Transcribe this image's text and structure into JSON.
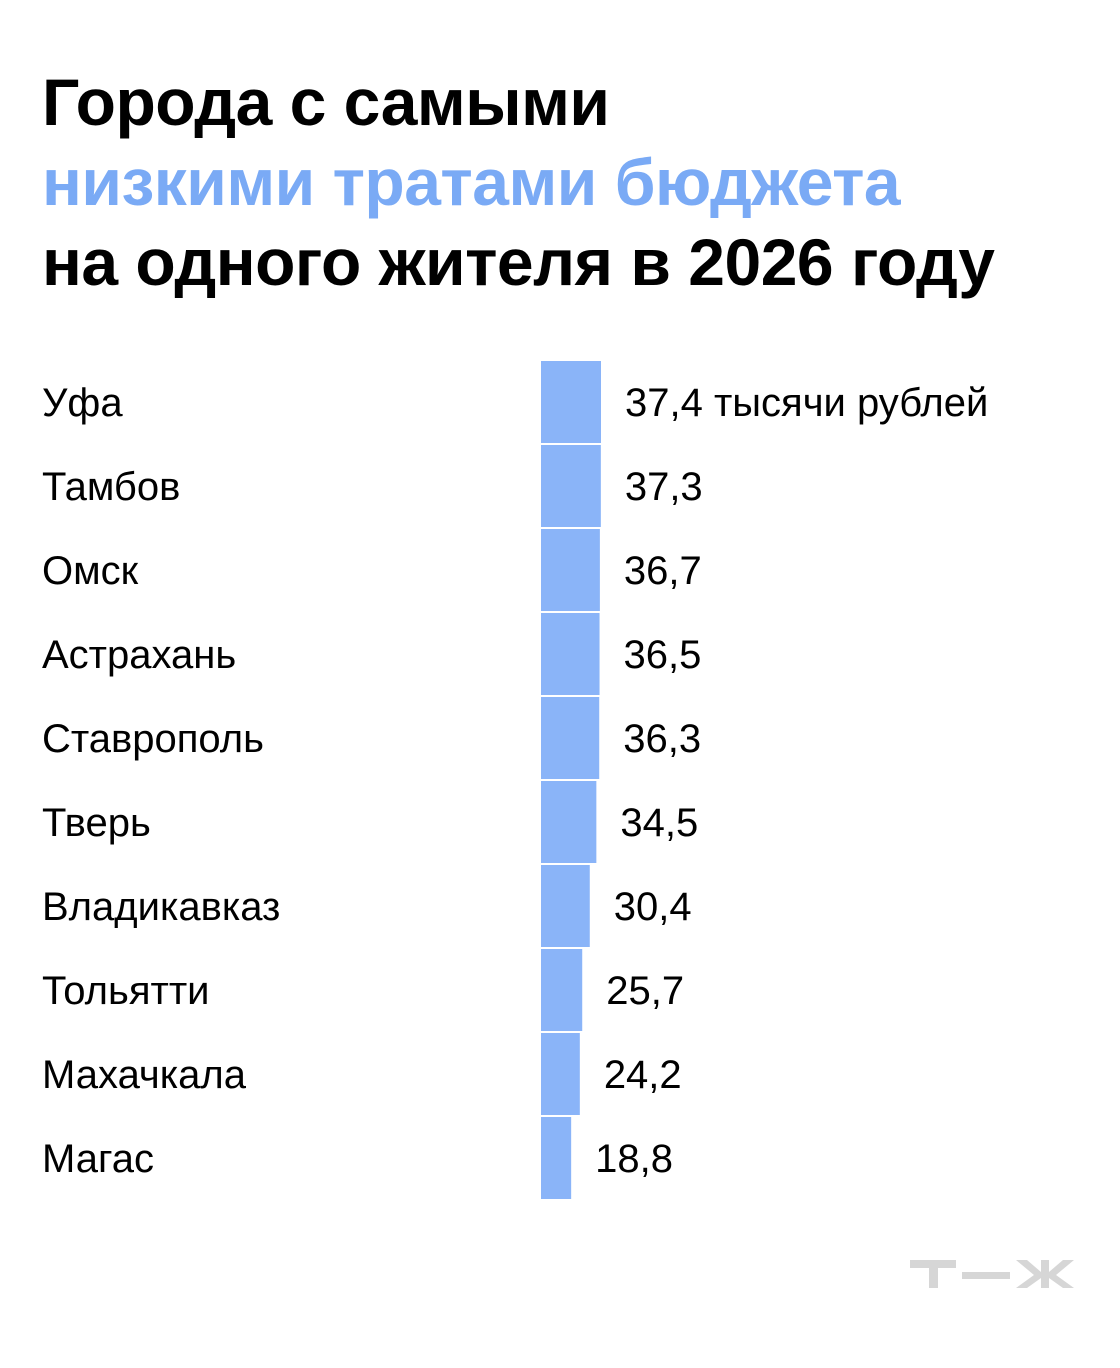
{
  "title": {
    "line1": "Города с самыми",
    "line2": "низкими тратами бюджета",
    "line3": "на одного жителя в 2026 году"
  },
  "colors": {
    "bar": "#8ab4f8",
    "accent": "#7aaaf5",
    "logo": "#d6d6d6"
  },
  "logo_text": "т—ж",
  "chart_data": {
    "type": "bar",
    "orientation": "horizontal",
    "categories": [
      "Уфа",
      "Тамбов",
      "Омск",
      "Астрахань",
      "Ставрополь",
      "Тверь",
      "Владикавказ",
      "Тольятти",
      "Махачкала",
      "Магас"
    ],
    "values": [
      37.4,
      37.3,
      36.7,
      36.5,
      36.3,
      34.5,
      30.4,
      25.7,
      24.2,
      18.8
    ],
    "value_labels": [
      "37,4 тысячи рублей",
      "37,3",
      "36,7",
      "36,5",
      "36,3",
      "34,5",
      "30,4",
      "25,7",
      "24,2",
      "18,8"
    ],
    "title": "Города с самыми низкими тратами бюджета на одного жителя в 2026 году",
    "xlim": [
      0,
      37.4
    ],
    "grid": false,
    "legend": "none"
  }
}
